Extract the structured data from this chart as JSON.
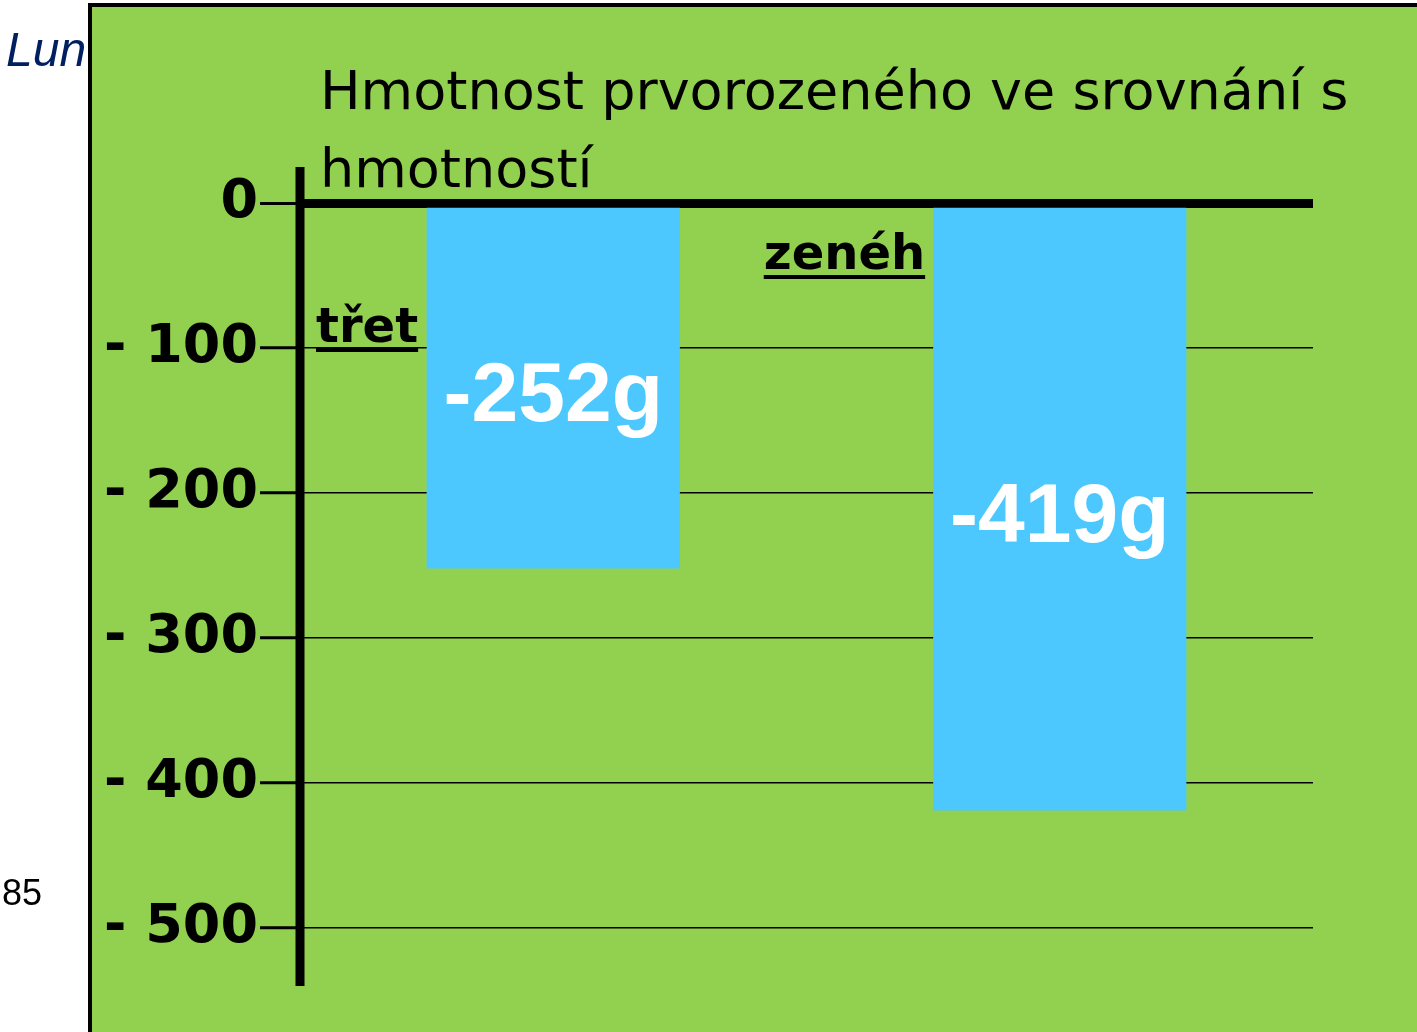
{
  "chart_data": {
    "type": "bar",
    "title": "Hmotnost prvorozeného ve srovnání s  hmotností",
    "categories": [
      null,
      null
    ],
    "values": [
      -252,
      -419
    ],
    "value_labels": [
      "-252g",
      "-419g"
    ],
    "color": "#4dc8ff",
    "ylim": [
      -540,
      25
    ],
    "yticks": [
      {
        "value": 0,
        "label": "0"
      },
      {
        "value": -100,
        "label": "- 100"
      },
      {
        "value": -200,
        "label": "- 200"
      },
      {
        "value": -300,
        "label": "- 300"
      },
      {
        "value": -400,
        "label": "- 400"
      },
      {
        "value": -500,
        "label": "- 500"
      }
    ],
    "grid": "y",
    "tick_labels": "y",
    "annotations": [
      "zenéh",
      "třet",
      "Lun",
      "85"
    ]
  }
}
